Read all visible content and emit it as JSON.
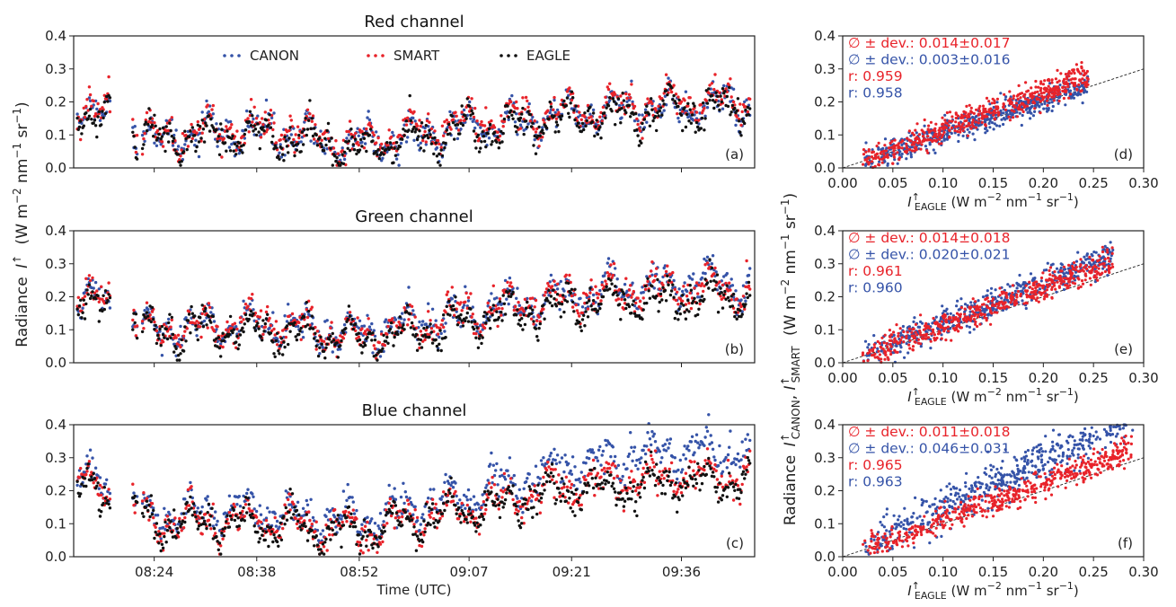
{
  "colors": {
    "canon": "#3553a8",
    "smart": "#e8232a",
    "eagle": "#111111"
  },
  "legend": [
    {
      "key": "canon",
      "label": "CANON"
    },
    {
      "key": "smart",
      "label": "SMART"
    },
    {
      "key": "eagle",
      "label": "EAGLE"
    }
  ],
  "shared": {
    "time_xlabel": "Time (UTC)",
    "time_ylabel_main": "Radiance",
    "time_ylabel_sym": "I",
    "time_ylabel_sup": "↑",
    "time_ylabel_units": "(W m",
    "scatter_ylabel_main": "Radiance",
    "scatter_ylabel_sub1": "CANON",
    "scatter_ylabel_sub2": "SMART",
    "scatter_xlabel_sym": "I",
    "scatter_xlabel_sub": "EAGLE",
    "scatter_xlabel_units": "(W m"
  },
  "chart_data": [
    {
      "type": "scatter",
      "panel": "(a)",
      "title": "Red channel",
      "x": "time",
      "xlim": [
        "08:13",
        "09:46"
      ],
      "ylim": [
        0,
        0.4
      ],
      "xticks": [
        "08:24",
        "08:38",
        "08:52",
        "09:07",
        "09:21",
        "09:36"
      ],
      "yticks": [
        "0.0",
        "0.1",
        "0.2",
        "0.3",
        "0.4"
      ],
      "series": [
        {
          "name": "CANON",
          "trend": [
            [
              "08:13",
              0.2
            ],
            [
              "08:24",
              0.09
            ],
            [
              "08:38",
              0.11
            ],
            [
              "08:52",
              0.07
            ],
            [
              "09:07",
              0.12
            ],
            [
              "09:21",
              0.16
            ],
            [
              "09:36",
              0.19
            ],
            [
              "09:46",
              0.19
            ]
          ]
        },
        {
          "name": "SMART",
          "trend": [
            [
              "08:13",
              0.21
            ],
            [
              "08:24",
              0.1
            ],
            [
              "08:38",
              0.12
            ],
            [
              "08:52",
              0.08
            ],
            [
              "09:07",
              0.14
            ],
            [
              "09:21",
              0.17
            ],
            [
              "09:36",
              0.2
            ],
            [
              "09:46",
              0.2
            ]
          ]
        },
        {
          "name": "EAGLE",
          "trend": [
            [
              "08:13",
              0.18
            ],
            [
              "08:24",
              0.08
            ],
            [
              "08:38",
              0.1
            ],
            [
              "08:52",
              0.06
            ],
            [
              "09:07",
              0.12
            ],
            [
              "09:21",
              0.15
            ],
            [
              "09:36",
              0.18
            ],
            [
              "09:46",
              0.18
            ]
          ]
        }
      ]
    },
    {
      "type": "scatter",
      "panel": "(b)",
      "title": "Green channel",
      "x": "time",
      "xlim": [
        "08:13",
        "09:46"
      ],
      "ylim": [
        0,
        0.4
      ],
      "xticks": [
        "08:24",
        "08:38",
        "08:52",
        "09:07",
        "09:21",
        "09:36"
      ],
      "yticks": [
        "0.0",
        "0.1",
        "0.2",
        "0.3",
        "0.4"
      ],
      "series": [
        {
          "name": "CANON",
          "trend": [
            [
              "08:13",
              0.22
            ],
            [
              "08:24",
              0.1
            ],
            [
              "08:38",
              0.12
            ],
            [
              "08:52",
              0.09
            ],
            [
              "09:07",
              0.15
            ],
            [
              "09:21",
              0.21
            ],
            [
              "09:36",
              0.24
            ],
            [
              "09:46",
              0.24
            ]
          ]
        },
        {
          "name": "SMART",
          "trend": [
            [
              "08:13",
              0.22
            ],
            [
              "08:24",
              0.1
            ],
            [
              "08:38",
              0.12
            ],
            [
              "08:52",
              0.08
            ],
            [
              "09:07",
              0.15
            ],
            [
              "09:21",
              0.2
            ],
            [
              "09:36",
              0.23
            ],
            [
              "09:46",
              0.22
            ]
          ]
        },
        {
          "name": "EAGLE",
          "trend": [
            [
              "08:13",
              0.2
            ],
            [
              "08:24",
              0.09
            ],
            [
              "08:38",
              0.1
            ],
            [
              "08:52",
              0.07
            ],
            [
              "09:07",
              0.13
            ],
            [
              "09:21",
              0.18
            ],
            [
              "09:36",
              0.2
            ],
            [
              "09:46",
              0.2
            ]
          ]
        }
      ]
    },
    {
      "type": "scatter",
      "panel": "(c)",
      "title": "Blue channel",
      "x": "time",
      "xlim": [
        "08:13",
        "09:46"
      ],
      "ylim": [
        0,
        0.4
      ],
      "xticks": [
        "08:24",
        "08:38",
        "08:52",
        "09:07",
        "09:21",
        "09:36"
      ],
      "yticks": [
        "0.0",
        "0.1",
        "0.2",
        "0.3",
        "0.4"
      ],
      "series": [
        {
          "name": "CANON",
          "trend": [
            [
              "08:13",
              0.26
            ],
            [
              "08:24",
              0.12
            ],
            [
              "08:38",
              0.14
            ],
            [
              "08:52",
              0.11
            ],
            [
              "09:07",
              0.19
            ],
            [
              "09:21",
              0.28
            ],
            [
              "09:36",
              0.32
            ],
            [
              "09:46",
              0.31
            ]
          ]
        },
        {
          "name": "SMART",
          "trend": [
            [
              "08:13",
              0.24
            ],
            [
              "08:24",
              0.11
            ],
            [
              "08:38",
              0.11
            ],
            [
              "08:52",
              0.08
            ],
            [
              "09:07",
              0.15
            ],
            [
              "09:21",
              0.22
            ],
            [
              "09:36",
              0.25
            ],
            [
              "09:46",
              0.24
            ]
          ]
        },
        {
          "name": "EAGLE",
          "trend": [
            [
              "08:13",
              0.22
            ],
            [
              "08:24",
              0.1
            ],
            [
              "08:38",
              0.1
            ],
            [
              "08:52",
              0.07
            ],
            [
              "09:07",
              0.14
            ],
            [
              "09:21",
              0.2
            ],
            [
              "09:36",
              0.23
            ],
            [
              "09:46",
              0.23
            ]
          ]
        }
      ]
    },
    {
      "type": "scatter",
      "panel": "(d)",
      "xlim": [
        0,
        0.3
      ],
      "ylim": [
        0,
        0.4
      ],
      "xticks": [
        "0.00",
        "0.05",
        "0.10",
        "0.15",
        "0.20",
        "0.25",
        "0.30"
      ],
      "yticks": [
        "0.0",
        "0.1",
        "0.2",
        "0.3",
        "0.4"
      ],
      "reference_line": {
        "slope": 1,
        "intercept": 0
      },
      "stats": [
        {
          "color": "smart",
          "text": "∅ ± dev.: 0.014±0.017"
        },
        {
          "color": "canon",
          "text": "∅ ± dev.: 0.003±0.016"
        },
        {
          "color": "smart",
          "text": "r: 0.959"
        },
        {
          "color": "canon",
          "text": "r: 0.958"
        }
      ],
      "series": [
        {
          "name": "CANON",
          "mean_dev": 0.003,
          "std_dev": 0.016,
          "r": 0.958,
          "x_range": [
            0.02,
            0.245
          ]
        },
        {
          "name": "SMART",
          "mean_dev": 0.014,
          "std_dev": 0.017,
          "r": 0.959,
          "x_range": [
            0.02,
            0.245
          ]
        }
      ]
    },
    {
      "type": "scatter",
      "panel": "(e)",
      "xlim": [
        0,
        0.3
      ],
      "ylim": [
        0,
        0.4
      ],
      "xticks": [
        "0.00",
        "0.05",
        "0.10",
        "0.15",
        "0.20",
        "0.25",
        "0.30"
      ],
      "yticks": [
        "0.0",
        "0.1",
        "0.2",
        "0.3",
        "0.4"
      ],
      "reference_line": {
        "slope": 1,
        "intercept": 0
      },
      "stats": [
        {
          "color": "smart",
          "text": "∅ ± dev.: 0.014±0.018"
        },
        {
          "color": "canon",
          "text": "∅ ± dev.: 0.020±0.021"
        },
        {
          "color": "smart",
          "text": "r: 0.961"
        },
        {
          "color": "canon",
          "text": "r: 0.960"
        }
      ],
      "series": [
        {
          "name": "CANON",
          "mean_dev": 0.02,
          "std_dev": 0.021,
          "r": 0.96,
          "x_range": [
            0.02,
            0.27
          ]
        },
        {
          "name": "SMART",
          "mean_dev": 0.014,
          "std_dev": 0.018,
          "r": 0.961,
          "x_range": [
            0.02,
            0.27
          ]
        }
      ]
    },
    {
      "type": "scatter",
      "panel": "(f)",
      "xlim": [
        0,
        0.3
      ],
      "ylim": [
        0,
        0.4
      ],
      "xticks": [
        "0.00",
        "0.05",
        "0.10",
        "0.15",
        "0.20",
        "0.25",
        "0.30"
      ],
      "yticks": [
        "0.0",
        "0.1",
        "0.2",
        "0.3",
        "0.4"
      ],
      "reference_line": {
        "slope": 1,
        "intercept": 0
      },
      "stats": [
        {
          "color": "smart",
          "text": "∅ ± dev.: 0.011±0.018"
        },
        {
          "color": "canon",
          "text": "∅ ± dev.: 0.046±0.031"
        },
        {
          "color": "smart",
          "text": "r: 0.965"
        },
        {
          "color": "canon",
          "text": "r: 0.963"
        }
      ],
      "series": [
        {
          "name": "CANON",
          "mean_dev": 0.046,
          "std_dev": 0.031,
          "r": 0.963,
          "x_range": [
            0.02,
            0.29
          ]
        },
        {
          "name": "SMART",
          "mean_dev": 0.011,
          "std_dev": 0.018,
          "r": 0.965,
          "x_range": [
            0.02,
            0.29
          ]
        }
      ]
    }
  ]
}
